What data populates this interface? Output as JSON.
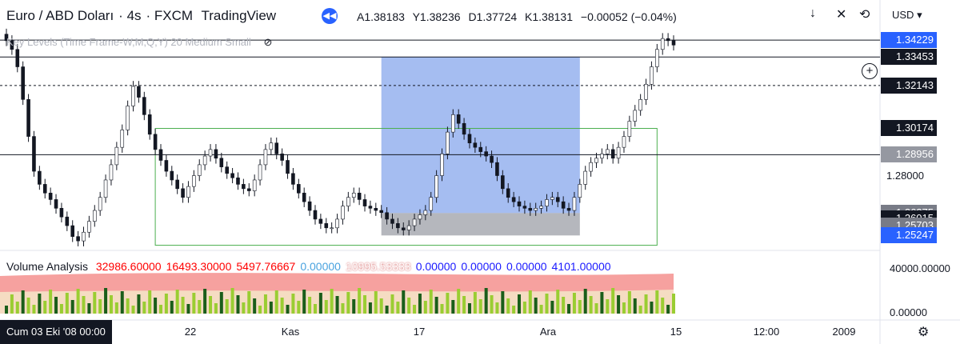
{
  "header": {
    "symbol": "Euro / ABD Doları",
    "interval": "4s",
    "exchange": "FXCM",
    "platform": "TradingView"
  },
  "ohlc": {
    "open": "A1.38183",
    "high": "Y1.38236",
    "low": "D1.37724",
    "close": "K1.38131",
    "change": "−0.00052 (−0.04%)"
  },
  "indicator_label": "Key Levels (Time Frame-W,M,Q,Y) 20 Medium Small",
  "currency": "USD",
  "volume_panel": {
    "title": "Volume Analysis",
    "values": [
      {
        "text": "32986.60000",
        "color": "#ff0000"
      },
      {
        "text": "16493.30000",
        "color": "#ff0000"
      },
      {
        "text": "5497.76667",
        "color": "#ff0000"
      },
      {
        "text": "0.00000",
        "color": "#4aa3df"
      },
      {
        "text": "10995.53333",
        "color": "#ffffff"
      },
      {
        "text": "0.00000",
        "color": "#1a1aff"
      },
      {
        "text": "0.00000",
        "color": "#1a1aff"
      },
      {
        "text": "0.00000",
        "color": "#1a1aff"
      },
      {
        "text": "4101.00000",
        "color": "#1a1aff"
      }
    ],
    "axis": [
      "40000.00000",
      "0.00000"
    ]
  },
  "price_tags": [
    {
      "text": "1.34229",
      "bg": "#2962ff",
      "fg": "#ffffff",
      "price": 1.3423
    },
    {
      "text": "1.33453",
      "bg": "#131722",
      "fg": "#ffffff",
      "price": 1.3345
    },
    {
      "text": "1.32143",
      "bg": "#131722",
      "fg": "#ffffff",
      "price": 1.3214
    },
    {
      "text": "1.30174",
      "bg": "#131722",
      "fg": "#ffffff",
      "price": 1.3017
    },
    {
      "text": "1.28956",
      "bg": "#9598a1",
      "fg": "#ffffff",
      "price": 1.2896
    },
    {
      "text": "1.26275",
      "bg": "#787b86",
      "fg": "#ffffff",
      "price": 1.2628
    },
    {
      "text": "1.26015",
      "bg": "#131722",
      "fg": "#ffffff",
      "price": 1.2602
    },
    {
      "text": "1.25703",
      "bg": "#787b86",
      "fg": "#ffffff",
      "price": 1.257
    },
    {
      "text": "1.25247",
      "bg": "#2962ff",
      "fg": "#ffffff",
      "price": 1.2525
    }
  ],
  "price_axis_labels": [
    {
      "text": "1.28000",
      "price": 1.28
    }
  ],
  "time_labels": [
    "22",
    "Kas",
    "17",
    "Ara",
    "15",
    "12:00",
    "2009"
  ],
  "date_badge": "Cum 03 Eki '08   00:00",
  "chart_data": {
    "type": "candlestick",
    "ylim": [
      1.246,
      1.346
    ],
    "x_count": 122,
    "close_series": [
      1.342,
      1.338,
      1.33,
      1.315,
      1.298,
      1.282,
      1.276,
      1.272,
      1.269,
      1.265,
      1.261,
      1.257,
      1.252,
      1.25,
      1.254,
      1.259,
      1.264,
      1.27,
      1.278,
      1.285,
      1.293,
      1.301,
      1.312,
      1.321,
      1.316,
      1.308,
      1.299,
      1.292,
      1.287,
      1.282,
      1.278,
      1.274,
      1.27,
      1.275,
      1.28,
      1.285,
      1.289,
      1.292,
      1.288,
      1.284,
      1.281,
      1.279,
      1.276,
      1.274,
      1.273,
      1.278,
      1.285,
      1.292,
      1.295,
      1.29,
      1.287,
      1.281,
      1.276,
      1.272,
      1.268,
      1.264,
      1.26,
      1.258,
      1.256,
      1.256,
      1.26,
      1.266,
      1.27,
      1.272,
      1.269,
      1.266,
      1.265,
      1.264,
      1.263,
      1.26,
      1.258,
      1.256,
      1.255,
      1.257,
      1.26,
      1.262,
      1.264,
      1.27,
      1.28,
      1.29,
      1.3,
      1.308,
      1.304,
      1.299,
      1.295,
      1.293,
      1.291,
      1.289,
      1.286,
      1.28,
      1.274,
      1.27,
      1.268,
      1.266,
      1.265,
      1.264,
      1.265,
      1.266,
      1.269,
      1.27,
      1.268,
      1.265,
      1.264,
      1.27,
      1.276,
      1.282,
      1.286,
      1.288,
      1.29,
      1.292,
      1.288,
      1.293,
      1.298,
      1.305,
      1.31,
      1.315,
      1.322,
      1.33,
      1.338,
      1.343,
      1.342,
      1.34
    ],
    "horizontal_levels": [
      1.3423,
      1.3345,
      1.3214,
      1.2896
    ],
    "position_box": {
      "entry": 1.2628,
      "target": 1.3345,
      "stop": 1.2525,
      "entry_index": 68,
      "end_index": 104
    },
    "range_box": {
      "top": 1.3017,
      "bottom": 1.248,
      "start_index": 27,
      "end_index": 118
    },
    "series": [
      {
        "name": "Volume Analysis",
        "max": 40000
      }
    ]
  }
}
